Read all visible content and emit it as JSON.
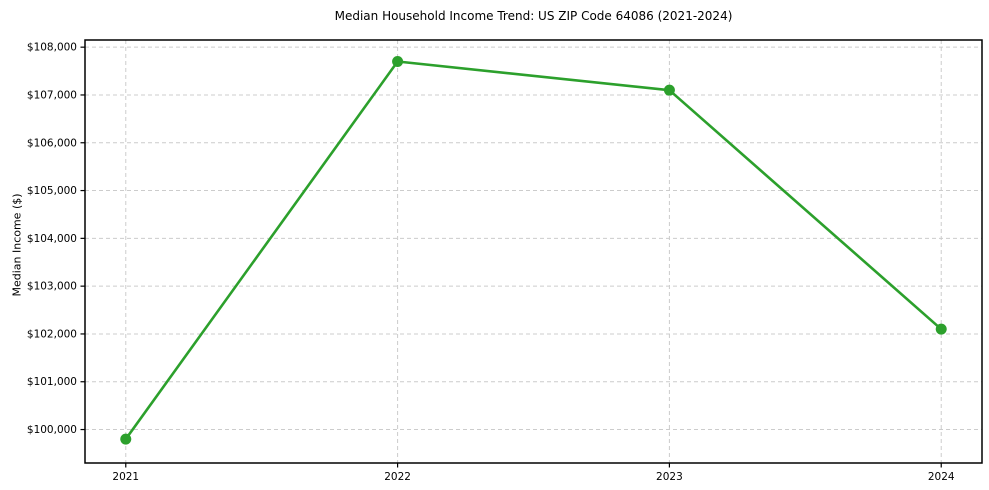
{
  "chart_data": {
    "type": "line",
    "title": "Median Household Income Trend: US ZIP Code 64086 (2021-2024)",
    "xlabel": "",
    "ylabel": "Median Income ($)",
    "series_name": "Median Household Income",
    "x": [
      2021,
      2022,
      2023,
      2024
    ],
    "x_tick_labels": [
      "2021",
      "2022",
      "2023",
      "2024"
    ],
    "values": [
      99800,
      107700,
      107100,
      102100
    ],
    "y_ticks": [
      100000,
      101000,
      102000,
      103000,
      104000,
      105000,
      106000,
      107000,
      108000
    ],
    "y_tick_labels": [
      "$100,000",
      "$101,000",
      "$102,000",
      "$103,000",
      "$104,000",
      "$105,000",
      "$106,000",
      "$107,000",
      "$108,000"
    ],
    "xlim": [
      2020.85,
      2024.15
    ],
    "ylim": [
      99300,
      108150
    ],
    "grid": true,
    "grid_style": "dashed",
    "legend_position": "none",
    "line_color": "#2ca02c",
    "marker": "circle",
    "grid_color": "#cccccc",
    "axis_color": "#000000",
    "text_color": "#000000",
    "background_color": "#ffffff"
  }
}
